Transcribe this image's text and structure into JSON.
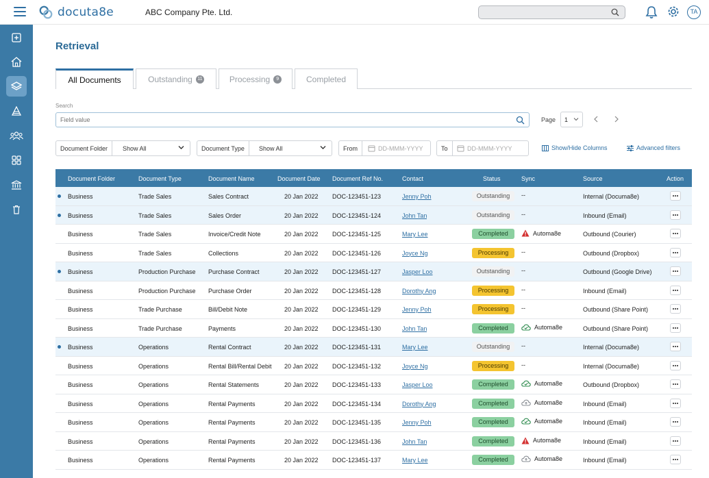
{
  "app": {
    "logo_text": "docuta8e",
    "company": "ABC Company Pte. Ltd.",
    "avatar": "TA",
    "search_placeholder": ""
  },
  "sidebar": {
    "items": [
      {
        "icon": "plus-square-icon",
        "active": false
      },
      {
        "icon": "home-icon",
        "active": false
      },
      {
        "icon": "layers-icon",
        "active": true
      },
      {
        "icon": "stack-icon",
        "active": false
      },
      {
        "icon": "users-icon",
        "active": false
      },
      {
        "icon": "grid-icon",
        "active": false
      },
      {
        "icon": "bank-icon",
        "active": false
      },
      {
        "icon": "trash-icon",
        "active": false
      }
    ]
  },
  "page": {
    "title": "Retrieval",
    "tabs": [
      {
        "label": "All Documents",
        "count": ""
      },
      {
        "label": "Outstanding",
        "count": "11"
      },
      {
        "label": "Processing",
        "count": "9"
      },
      {
        "label": "Completed",
        "count": ""
      }
    ],
    "search_label": "Search",
    "search_placeholder": "Field value",
    "page_label": "Page",
    "page_value": "1"
  },
  "filters": {
    "folder_label": "Document Folder",
    "folder_value": "Show All",
    "type_label": "Document Type",
    "type_value": "Show All",
    "from_label": "From",
    "from_placeholder": "DD-MMM-YYYY",
    "to_label": "To",
    "to_placeholder": "DD-MMM-YYYY",
    "columns_link": "Show/Hide Columns",
    "advanced_link": "Advanced filters"
  },
  "table": {
    "headers": {
      "folder": "Document Folder",
      "type": "Document Type",
      "name": "Document Name",
      "date": "Document Date",
      "ref": "Document Ref No.",
      "contact": "Contact",
      "status": "Status",
      "sync": "Sync",
      "source": "Source",
      "action": "Action"
    },
    "rows": [
      {
        "hl": true,
        "folder": "Business",
        "type": "Trade Sales",
        "name": "Sales Contract",
        "date": "20 Jan 2022",
        "ref": "DOC-123451-123",
        "contact": "Jenny Poh",
        "status": "Outstanding",
        "sync_icon": "",
        "sync": "--",
        "source": "Internal (Documa8e)"
      },
      {
        "hl": true,
        "folder": "Business",
        "type": "Trade Sales",
        "name": "Sales Order",
        "date": "20 Jan 2022",
        "ref": "DOC-123451-124",
        "contact": "John Tan",
        "status": "Outstanding",
        "sync_icon": "",
        "sync": "--",
        "source": "Inbound (Email)"
      },
      {
        "hl": false,
        "folder": "Business",
        "type": "Trade Sales",
        "name": "Invoice/Credit Note",
        "date": "20 Jan 2022",
        "ref": "DOC-123451-125",
        "contact": "Mary Lee",
        "status": "Completed",
        "sync_icon": "warning",
        "sync": "Automa8e",
        "source": "Outbound (Courier)"
      },
      {
        "hl": false,
        "folder": "Business",
        "type": "Trade Sales",
        "name": "Collections",
        "date": "20 Jan 2022",
        "ref": "DOC-123451-126",
        "contact": "Joyce Ng",
        "status": "Processing",
        "sync_icon": "",
        "sync": "--",
        "source": "Outbound (Dropbox)"
      },
      {
        "hl": true,
        "folder": "Business",
        "type": "Production Purchase",
        "name": "Purchase Contract",
        "date": "20 Jan 2022",
        "ref": "DOC-123451-127",
        "contact": "Jasper Loo",
        "status": "Outstanding",
        "sync_icon": "",
        "sync": "--",
        "source": "Outbound (Google Drive)"
      },
      {
        "hl": false,
        "folder": "Business",
        "type": "Production Purchase",
        "name": "Purchase Order",
        "date": "20 Jan 2022",
        "ref": "DOC-123451-128",
        "contact": "Dorothy Ang",
        "status": "Processing",
        "sync_icon": "",
        "sync": "--",
        "source": "Inbound (Email)"
      },
      {
        "hl": false,
        "folder": "Business",
        "type": "Trade Purchase",
        "name": "Bill/Debit Note",
        "date": "20 Jan 2022",
        "ref": "DOC-123451-129",
        "contact": "Jenny Poh",
        "status": "Processing",
        "sync_icon": "",
        "sync": "--",
        "source": "Outbound (Share Point)"
      },
      {
        "hl": false,
        "folder": "Business",
        "type": "Trade Purchase",
        "name": "Payments",
        "date": "20 Jan 2022",
        "ref": "DOC-123451-130",
        "contact": "John Tan",
        "status": "Completed",
        "sync_icon": "cloud-check",
        "sync": "Automa8e",
        "source": "Outbound (Share Point)"
      },
      {
        "hl": true,
        "folder": "Business",
        "type": "Operations",
        "name": "Rental Contract",
        "date": "20 Jan 2022",
        "ref": "DOC-123451-131",
        "contact": "Mary Lee",
        "status": "Outstanding",
        "sync_icon": "",
        "sync": "--",
        "source": "Internal (Documa8e)"
      },
      {
        "hl": false,
        "folder": "Business",
        "type": "Operations",
        "name": "Rental Bill/Rental Debit",
        "date": "20 Jan 2022",
        "ref": "DOC-123451-132",
        "contact": "Joyce Ng",
        "status": "Processing",
        "sync_icon": "",
        "sync": "--",
        "source": "Internal (Documa8e)"
      },
      {
        "hl": false,
        "folder": "Business",
        "type": "Operations",
        "name": "Rental Statements",
        "date": "20 Jan 2022",
        "ref": "DOC-123451-133",
        "contact": "Jasper Loo",
        "status": "Completed",
        "sync_icon": "cloud-check",
        "sync": "Automa8e",
        "source": "Outbound (Dropbox)"
      },
      {
        "hl": false,
        "folder": "Business",
        "type": "Operations",
        "name": "Rental Payments",
        "date": "20 Jan 2022",
        "ref": "DOC-123451-134",
        "contact": "Dorothy Ang",
        "status": "Completed",
        "sync_icon": "cloud-grey",
        "sync": "Automa8e",
        "source": "Inbound (Email)"
      },
      {
        "hl": false,
        "folder": "Business",
        "type": "Operations",
        "name": "Rental Payments",
        "date": "20 Jan 2022",
        "ref": "DOC-123451-135",
        "contact": "Jenny Poh",
        "status": "Completed",
        "sync_icon": "cloud-check",
        "sync": "Automa8e",
        "source": "Inbound (Email)"
      },
      {
        "hl": false,
        "folder": "Business",
        "type": "Operations",
        "name": "Rental Payments",
        "date": "20 Jan 2022",
        "ref": "DOC-123451-136",
        "contact": "John Tan",
        "status": "Completed",
        "sync_icon": "warning",
        "sync": "Automa8e",
        "source": "Inbound (Email)"
      },
      {
        "hl": false,
        "folder": "Business",
        "type": "Operations",
        "name": "Rental Payments",
        "date": "20 Jan 2022",
        "ref": "DOC-123451-137",
        "contact": "Mary Lee",
        "status": "Completed",
        "sync_icon": "cloud-grey",
        "sync": "Automa8e",
        "source": "Inbound (Email)"
      }
    ]
  }
}
